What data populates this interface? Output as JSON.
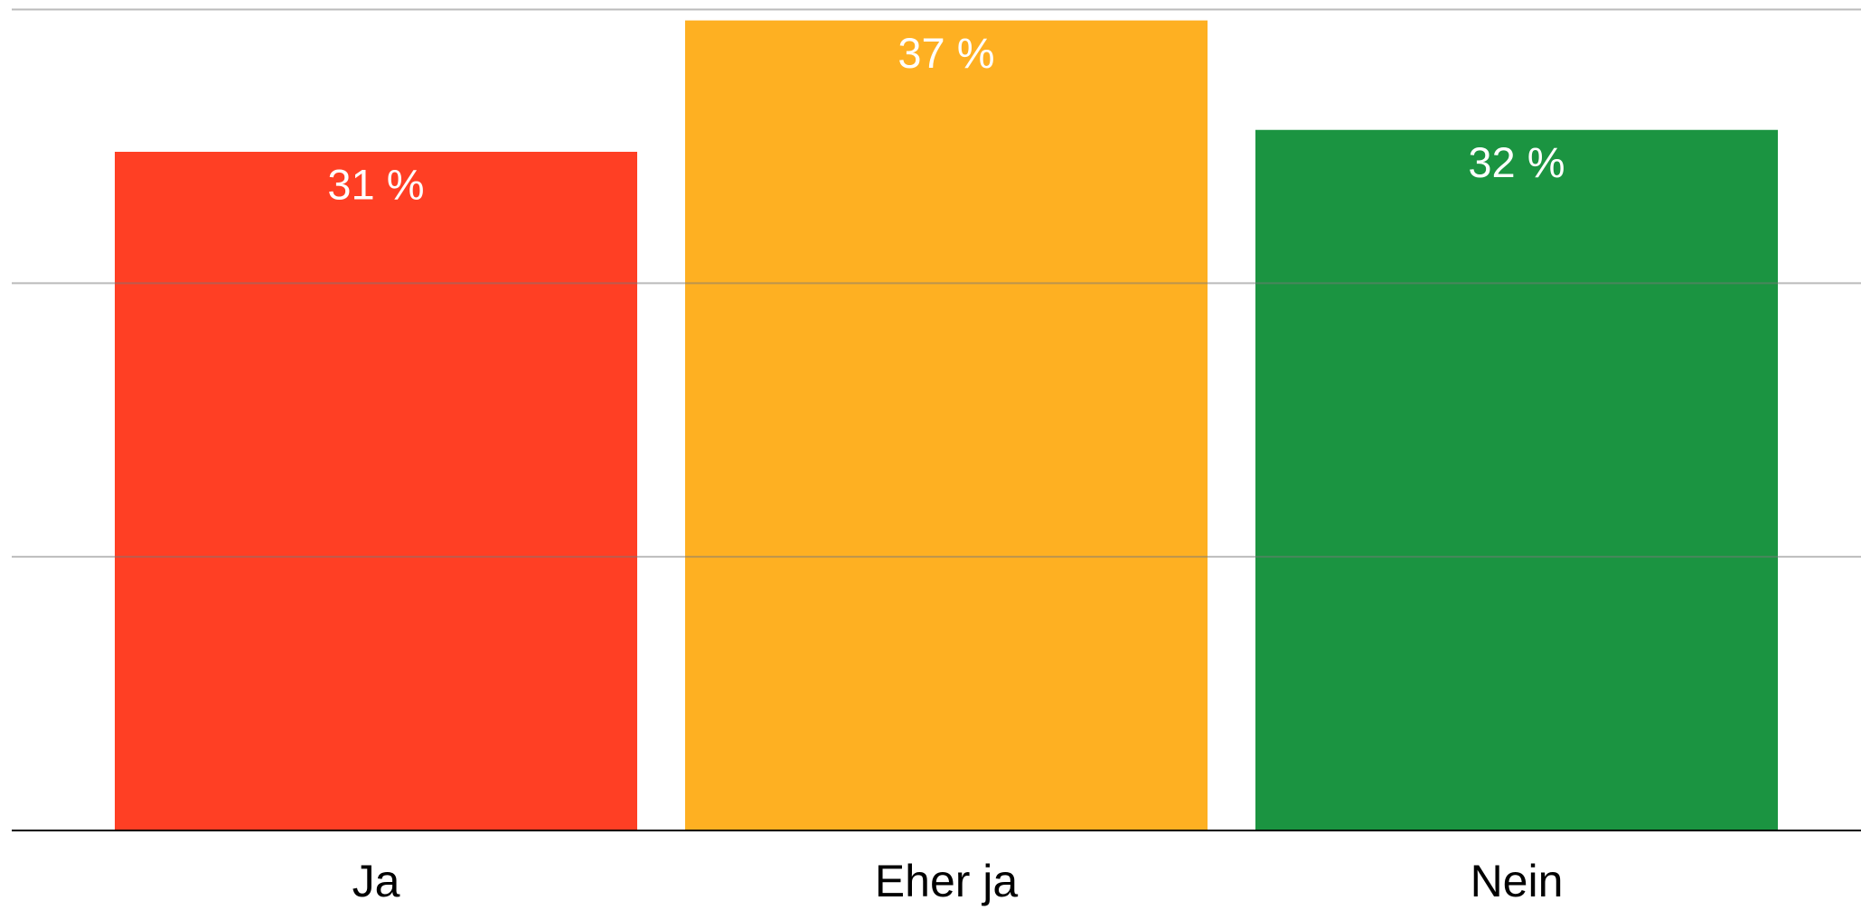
{
  "chart_data": {
    "type": "bar",
    "categories": [
      "Ja",
      "Eher ja",
      "Nein"
    ],
    "values": [
      31,
      37,
      32
    ],
    "value_labels": [
      "31 %",
      "37 %",
      "32 %"
    ],
    "colors": [
      "#ff3f24",
      "#feb022",
      "#1b9441"
    ],
    "ylim": [
      0,
      37.5
    ],
    "yticks": [
      0,
      12.5,
      25,
      37.5
    ],
    "grid": true
  }
}
